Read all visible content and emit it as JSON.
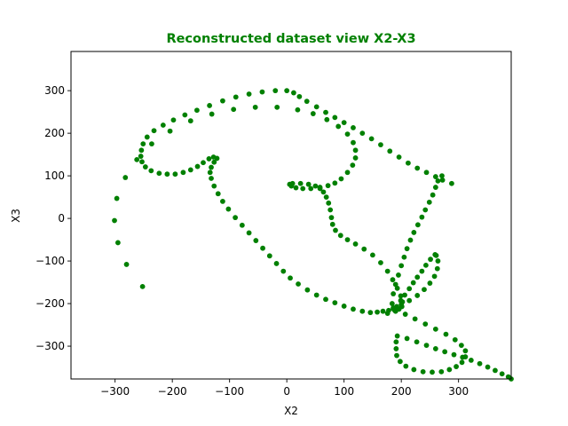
{
  "chart_data": {
    "type": "scatter",
    "title": "Reconstructed dataset view X2-X3",
    "xlabel": "X2",
    "ylabel": "X3",
    "xlim": [
      -377,
      392
    ],
    "ylim": [
      -377,
      392
    ],
    "x_ticks": [
      -300,
      -200,
      -100,
      0,
      100,
      200,
      300
    ],
    "y_ticks": [
      -300,
      -200,
      -100,
      0,
      100,
      200,
      300
    ],
    "x_tick_labels": [
      "−300",
      "−200",
      "−100",
      "0",
      "100",
      "200",
      "300"
    ],
    "y_tick_labels": [
      "−300",
      "−200",
      "−100",
      "0",
      "100",
      "200",
      "300"
    ],
    "grid": false,
    "marker_color": "#008000",
    "title_color": "#008000",
    "series": [
      {
        "points": [
          [
            -252,
            -160
          ],
          [
            -280,
            -108
          ],
          [
            -295,
            -57
          ],
          [
            -301,
            -5
          ],
          [
            -297,
            47
          ],
          [
            -282,
            96
          ],
          [
            -262,
            138
          ],
          [
            -236,
            175
          ],
          [
            -204,
            205
          ],
          [
            -168,
            229
          ],
          [
            -131,
            245
          ],
          [
            -93,
            256
          ],
          [
            -55,
            261
          ],
          [
            -17,
            261
          ],
          [
            19,
            255
          ],
          [
            46,
            246
          ],
          [
            70,
            232
          ],
          [
            90,
            216
          ],
          [
            106,
            198
          ],
          [
            116,
            178
          ],
          [
            120,
            160
          ],
          [
            120,
            142
          ],
          [
            115,
            125
          ],
          [
            106,
            108
          ],
          [
            95,
            93
          ],
          [
            84,
            83
          ],
          [
            72,
            77
          ],
          [
            58,
            73
          ],
          [
            42,
            70
          ],
          [
            28,
            70
          ],
          [
            16,
            72
          ],
          [
            8,
            76
          ],
          [
            5,
            80
          ],
          [
            10,
            82
          ],
          [
            24,
            82
          ],
          [
            38,
            80
          ],
          [
            50,
            76
          ],
          [
            58,
            70
          ],
          [
            64,
            62
          ],
          [
            69,
            50
          ],
          [
            73,
            36
          ],
          [
            76,
            20
          ],
          [
            78,
            2
          ],
          [
            80,
            -14
          ],
          [
            85,
            -28
          ],
          [
            94,
            -40
          ],
          [
            106,
            -50
          ],
          [
            120,
            -60
          ],
          [
            135,
            -72
          ],
          [
            150,
            -86
          ],
          [
            164,
            -104
          ],
          [
            176,
            -124
          ],
          [
            185,
            -144
          ],
          [
            193,
            -164
          ],
          [
            199,
            -182
          ],
          [
            202,
            -196
          ],
          [
            201,
            -207
          ],
          [
            196,
            -213
          ],
          [
            188,
            -215
          ],
          [
            178,
            -216
          ],
          [
            168,
            -218
          ],
          [
            158,
            -220
          ],
          [
            146,
            -221
          ],
          [
            132,
            -218
          ],
          [
            116,
            -213
          ],
          [
            100,
            -206
          ],
          [
            84,
            -198
          ],
          [
            68,
            -190
          ],
          [
            52,
            -180
          ],
          [
            36,
            -168
          ],
          [
            20,
            -154
          ],
          [
            6,
            -140
          ],
          [
            -6,
            -124
          ],
          [
            -18,
            -106
          ],
          [
            -30,
            -88
          ],
          [
            -42,
            -70
          ],
          [
            -54,
            -52
          ],
          [
            -66,
            -34
          ],
          [
            -78,
            -16
          ],
          [
            -90,
            2
          ],
          [
            -102,
            22
          ],
          [
            -112,
            40
          ],
          [
            -120,
            58
          ],
          [
            -127,
            76
          ],
          [
            -132,
            94
          ],
          [
            -134,
            108
          ],
          [
            -132,
            120
          ],
          [
            -127,
            132
          ],
          [
            -122,
            141
          ],
          [
            -128,
            144
          ],
          [
            -136,
            140
          ],
          [
            -146,
            131
          ],
          [
            -156,
            122
          ],
          [
            -168,
            114
          ],
          [
            -181,
            108
          ],
          [
            -195,
            104
          ],
          [
            -209,
            104
          ],
          [
            -223,
            106
          ],
          [
            -237,
            112
          ],
          [
            -247,
            121
          ],
          [
            -253,
            133
          ],
          [
            -255,
            146
          ],
          [
            -254,
            160
          ],
          [
            -251,
            175
          ],
          [
            -244,
            191
          ],
          [
            -232,
            206
          ],
          [
            -216,
            219
          ],
          [
            -198,
            231
          ],
          [
            -178,
            243
          ],
          [
            -157,
            254
          ],
          [
            -135,
            265
          ],
          [
            -112,
            276
          ],
          [
            -89,
            285
          ],
          [
            -66,
            292
          ],
          [
            -43,
            297
          ],
          [
            -20,
            300
          ],
          [
            0,
            300
          ],
          [
            12,
            295
          ],
          [
            22,
            286
          ],
          [
            35,
            275
          ],
          [
            52,
            262
          ],
          [
            68,
            249
          ],
          [
            84,
            237
          ],
          [
            100,
            225
          ],
          [
            116,
            213
          ],
          [
            132,
            200
          ],
          [
            148,
            187
          ],
          [
            164,
            173
          ],
          [
            180,
            158
          ],
          [
            196,
            144
          ],
          [
            212,
            130
          ],
          [
            228,
            118
          ],
          [
            244,
            108
          ],
          [
            260,
            98
          ],
          [
            272,
            90
          ],
          [
            288,
            82
          ],
          [
            271,
            100
          ],
          [
            264,
            88
          ],
          [
            260,
            73
          ],
          [
            255,
            55
          ],
          [
            249,
            38
          ],
          [
            242,
            20
          ],
          [
            236,
            3
          ],
          [
            229,
            -15
          ],
          [
            222,
            -33
          ],
          [
            216,
            -51
          ],
          [
            210,
            -71
          ],
          [
            205,
            -91
          ],
          [
            200,
            -111
          ],
          [
            195,
            -133
          ],
          [
            190,
            -155
          ],
          [
            186,
            -177
          ],
          [
            184,
            -200
          ],
          [
            186,
            -210
          ],
          [
            192,
            -207
          ],
          [
            199,
            -193
          ],
          [
            206,
            -180
          ],
          [
            214,
            -165
          ],
          [
            221,
            -151
          ],
          [
            228,
            -138
          ],
          [
            236,
            -124
          ],
          [
            243,
            -110
          ],
          [
            251,
            -96
          ],
          [
            259,
            -85
          ],
          [
            261,
            -87
          ],
          [
            264,
            -100
          ],
          [
            263,
            -118
          ],
          [
            258,
            -136
          ],
          [
            250,
            -152
          ],
          [
            240,
            -167
          ],
          [
            228,
            -181
          ],
          [
            214,
            -193
          ],
          [
            200,
            -202
          ],
          [
            186,
            -212
          ],
          [
            176,
            -223
          ],
          [
            190,
            -218
          ],
          [
            207,
            -225
          ],
          [
            224,
            -236
          ],
          [
            242,
            -248
          ],
          [
            260,
            -260
          ],
          [
            278,
            -272
          ],
          [
            294,
            -285
          ],
          [
            305,
            -298
          ],
          [
            312,
            -311
          ],
          [
            312,
            -325
          ],
          [
            306,
            -338
          ],
          [
            296,
            -348
          ],
          [
            284,
            -355
          ],
          [
            270,
            -360
          ],
          [
            254,
            -361
          ],
          [
            238,
            -360
          ],
          [
            222,
            -355
          ],
          [
            208,
            -347
          ],
          [
            198,
            -336
          ],
          [
            192,
            -322
          ],
          [
            191,
            -306
          ],
          [
            191,
            -290
          ],
          [
            193,
            -276
          ],
          [
            210,
            -282
          ],
          [
            227,
            -290
          ],
          [
            244,
            -298
          ],
          [
            260,
            -306
          ],
          [
            276,
            -313
          ],
          [
            292,
            -320
          ],
          [
            307,
            -326
          ],
          [
            322,
            -333
          ],
          [
            337,
            -341
          ],
          [
            351,
            -349
          ],
          [
            364,
            -357
          ],
          [
            376,
            -365
          ],
          [
            387,
            -372
          ],
          [
            392,
            -377
          ]
        ]
      }
    ]
  }
}
